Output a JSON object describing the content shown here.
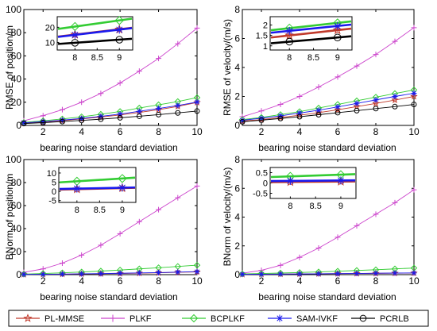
{
  "chart_data": [
    {
      "type": "line",
      "panel": "top-left",
      "ylabel": "RMSE of position/m",
      "xlabel": "bearing noise standard deviation",
      "xlim": [
        1,
        10
      ],
      "ylim": [
        0,
        100
      ],
      "xticks": [
        2,
        4,
        6,
        8,
        10
      ],
      "yticks": [
        0,
        20,
        40,
        60,
        80,
        100
      ],
      "grid": false,
      "x": [
        1,
        2,
        3,
        4,
        5,
        6,
        7,
        8,
        9,
        10
      ],
      "series": [
        {
          "name": "PL-MMSE",
          "values": [
            2.0,
            3.0,
            4.2,
            5.6,
            7.2,
            9.0,
            11.2,
            13.6,
            16.4,
            19.8
          ]
        },
        {
          "name": "PLKF",
          "values": [
            4.0,
            8.4,
            13.6,
            20.0,
            27.6,
            36.6,
            46.8,
            57.8,
            70.5,
            84.0
          ]
        },
        {
          "name": "BCPLKF",
          "values": [
            2.6,
            4.0,
            5.6,
            7.4,
            9.6,
            12.0,
            15.0,
            17.8,
            20.6,
            24.0
          ]
        },
        {
          "name": "SAM-IVKF",
          "values": [
            2.2,
            3.3,
            4.6,
            6.0,
            7.8,
            9.8,
            12.2,
            14.6,
            17.2,
            20.2
          ]
        },
        {
          "name": "PCRLB",
          "values": [
            1.6,
            2.4,
            3.3,
            4.3,
            5.4,
            6.6,
            7.9,
            9.3,
            10.8,
            12.4
          ]
        }
      ],
      "inset": {
        "xlim": [
          7.6,
          9.3
        ],
        "ylim": [
          5,
          27
        ],
        "xticks": [
          8,
          8.5,
          9
        ],
        "yticks": [
          10,
          20
        ],
        "series": [
          {
            "name": "PL-MMSE",
            "values": [
              15.2,
              18.6
            ]
          },
          {
            "name": "PLKF",
            "values": [
              null,
              null
            ]
          },
          {
            "name": "BCPLKF",
            "values": [
              20.5,
              24.5
            ]
          },
          {
            "name": "SAM-IVKF",
            "values": [
              15.0,
              18.4
            ]
          },
          {
            "name": "PCRLB",
            "values": [
              9.8,
              11.8
            ]
          }
        ],
        "x": [
          8,
          9
        ]
      }
    },
    {
      "type": "line",
      "panel": "top-right",
      "ylabel": "RMSE of velocity/(m/s)",
      "xlabel": "bearing noise standard deviation",
      "xlim": [
        1,
        10
      ],
      "ylim": [
        0,
        8
      ],
      "xticks": [
        2,
        4,
        6,
        8,
        10
      ],
      "yticks": [
        0,
        2,
        4,
        6,
        8
      ],
      "grid": false,
      "x": [
        1,
        2,
        3,
        4,
        5,
        6,
        7,
        8,
        9,
        10
      ],
      "series": [
        {
          "name": "PL-MMSE",
          "values": [
            0.3,
            0.4,
            0.55,
            0.7,
            0.88,
            1.08,
            1.3,
            1.52,
            1.75,
            2.0
          ]
        },
        {
          "name": "PLKF",
          "values": [
            0.6,
            1.0,
            1.45,
            2.0,
            2.65,
            3.35,
            4.1,
            4.9,
            5.8,
            6.75
          ]
        },
        {
          "name": "BCPLKF",
          "values": [
            0.4,
            0.55,
            0.75,
            0.95,
            1.2,
            1.45,
            1.7,
            1.95,
            2.2,
            2.45
          ]
        },
        {
          "name": "SAM-IVKF",
          "values": [
            0.35,
            0.5,
            0.66,
            0.85,
            1.05,
            1.28,
            1.52,
            1.76,
            2.0,
            2.22
          ]
        },
        {
          "name": "PCRLB",
          "values": [
            0.25,
            0.36,
            0.48,
            0.6,
            0.74,
            0.88,
            1.02,
            1.16,
            1.3,
            1.45
          ]
        }
      ],
      "inset": {
        "xlim": [
          7.6,
          9.3
        ],
        "ylim": [
          0.8,
          2.4
        ],
        "xticks": [
          8,
          8.5,
          9
        ],
        "yticks": [
          1,
          1.5,
          2
        ],
        "series": [
          {
            "name": "PL-MMSE",
            "values": [
              1.5,
              1.75
            ]
          },
          {
            "name": "PLKF",
            "values": [
              null,
              null
            ]
          },
          {
            "name": "BCPLKF",
            "values": [
              1.85,
              2.1
            ]
          },
          {
            "name": "SAM-IVKF",
            "values": [
              1.72,
              1.95
            ]
          },
          {
            "name": "PCRLB",
            "values": [
              1.2,
              1.4
            ]
          }
        ],
        "x": [
          8,
          9
        ]
      }
    },
    {
      "type": "line",
      "panel": "bottom-left",
      "ylabel": "BNorm of position/m",
      "xlabel": "bearing noise standard deviation",
      "xlim": [
        1,
        10
      ],
      "ylim": [
        0,
        100
      ],
      "xticks": [
        2,
        4,
        6,
        8,
        10
      ],
      "yticks": [
        0,
        20,
        40,
        60,
        80,
        100
      ],
      "grid": false,
      "x": [
        1,
        2,
        3,
        4,
        5,
        6,
        7,
        8,
        9,
        10
      ],
      "series": [
        {
          "name": "PL-MMSE",
          "values": [
            0.2,
            0.3,
            0.4,
            0.6,
            0.8,
            1.0,
            1.3,
            1.6,
            2.0,
            2.4
          ]
        },
        {
          "name": "PLKF",
          "values": [
            2.0,
            5.0,
            10.0,
            17.0,
            25.6,
            35.6,
            46.0,
            56.5,
            66.8,
            77.0
          ]
        },
        {
          "name": "BCPLKF",
          "values": [
            0.5,
            1.0,
            1.6,
            2.3,
            3.1,
            4.0,
            5.0,
            6.0,
            7.1,
            8.2
          ]
        },
        {
          "name": "SAM-IVKF",
          "values": [
            0.2,
            0.3,
            0.5,
            0.7,
            0.9,
            1.2,
            1.5,
            1.8,
            2.2,
            2.6
          ]
        }
      ],
      "inset": {
        "xlim": [
          7.6,
          9.3
        ],
        "ylim": [
          -6,
          13
        ],
        "xticks": [
          8,
          8.5,
          9
        ],
        "yticks": [
          -5,
          0,
          5,
          10
        ],
        "series": [
          {
            "name": "PL-MMSE",
            "values": [
              1.2,
              1.8
            ]
          },
          {
            "name": "PLKF",
            "values": [
              null,
              null
            ]
          },
          {
            "name": "BCPLKF",
            "values": [
              5.5,
              7.0
            ]
          },
          {
            "name": "SAM-IVKF",
            "values": [
              1.5,
              2.0
            ]
          }
        ],
        "x": [
          8,
          9
        ]
      }
    },
    {
      "type": "line",
      "panel": "bottom-right",
      "ylabel": "BNorm of velocity/(m/s)",
      "xlabel": "bearing noise standard deviation",
      "xlim": [
        1,
        10
      ],
      "ylim": [
        0,
        8
      ],
      "xticks": [
        2,
        4,
        6,
        8,
        10
      ],
      "yticks": [
        0,
        2,
        4,
        6,
        8
      ],
      "grid": false,
      "x": [
        1,
        2,
        3,
        4,
        5,
        6,
        7,
        8,
        9,
        10
      ],
      "series": [
        {
          "name": "PL-MMSE",
          "values": [
            0.02,
            0.03,
            0.04,
            0.05,
            0.06,
            0.07,
            0.08,
            0.09,
            0.1,
            0.11
          ]
        },
        {
          "name": "PLKF",
          "values": [
            0.1,
            0.3,
            0.65,
            1.2,
            1.85,
            2.6,
            3.4,
            4.2,
            5.0,
            5.9
          ]
        },
        {
          "name": "BCPLKF",
          "values": [
            0.05,
            0.08,
            0.11,
            0.15,
            0.19,
            0.24,
            0.29,
            0.34,
            0.4,
            0.46
          ]
        },
        {
          "name": "SAM-IVKF",
          "values": [
            0.02,
            0.03,
            0.04,
            0.05,
            0.06,
            0.07,
            0.08,
            0.1,
            0.11,
            0.12
          ]
        }
      ],
      "inset": {
        "xlim": [
          7.6,
          9.3
        ],
        "ylim": [
          -0.75,
          0.75
        ],
        "xticks": [
          8,
          8.5,
          9
        ],
        "yticks": [
          -0.5,
          0,
          0.5
        ],
        "series": [
          {
            "name": "PL-MMSE",
            "values": [
              0.05,
              0.07
            ]
          },
          {
            "name": "PLKF",
            "values": [
              null,
              null
            ]
          },
          {
            "name": "BCPLKF",
            "values": [
              0.32,
              0.4
            ]
          },
          {
            "name": "SAM-IVKF",
            "values": [
              0.1,
              0.12
            ]
          }
        ],
        "x": [
          8,
          9
        ]
      }
    }
  ],
  "legend": {
    "placement": "bottom",
    "entries": [
      {
        "name": "PL-MMSE",
        "color": "#c0392b",
        "marker": "star"
      },
      {
        "name": "PLKF",
        "color": "#cc44cc",
        "marker": "plus"
      },
      {
        "name": "BCPLKF",
        "color": "#33cc33",
        "marker": "diamond"
      },
      {
        "name": "SAM-IVKF",
        "color": "#1a1aee",
        "marker": "asterisk"
      },
      {
        "name": "PCRLB",
        "color": "#000000",
        "marker": "circle"
      }
    ]
  }
}
